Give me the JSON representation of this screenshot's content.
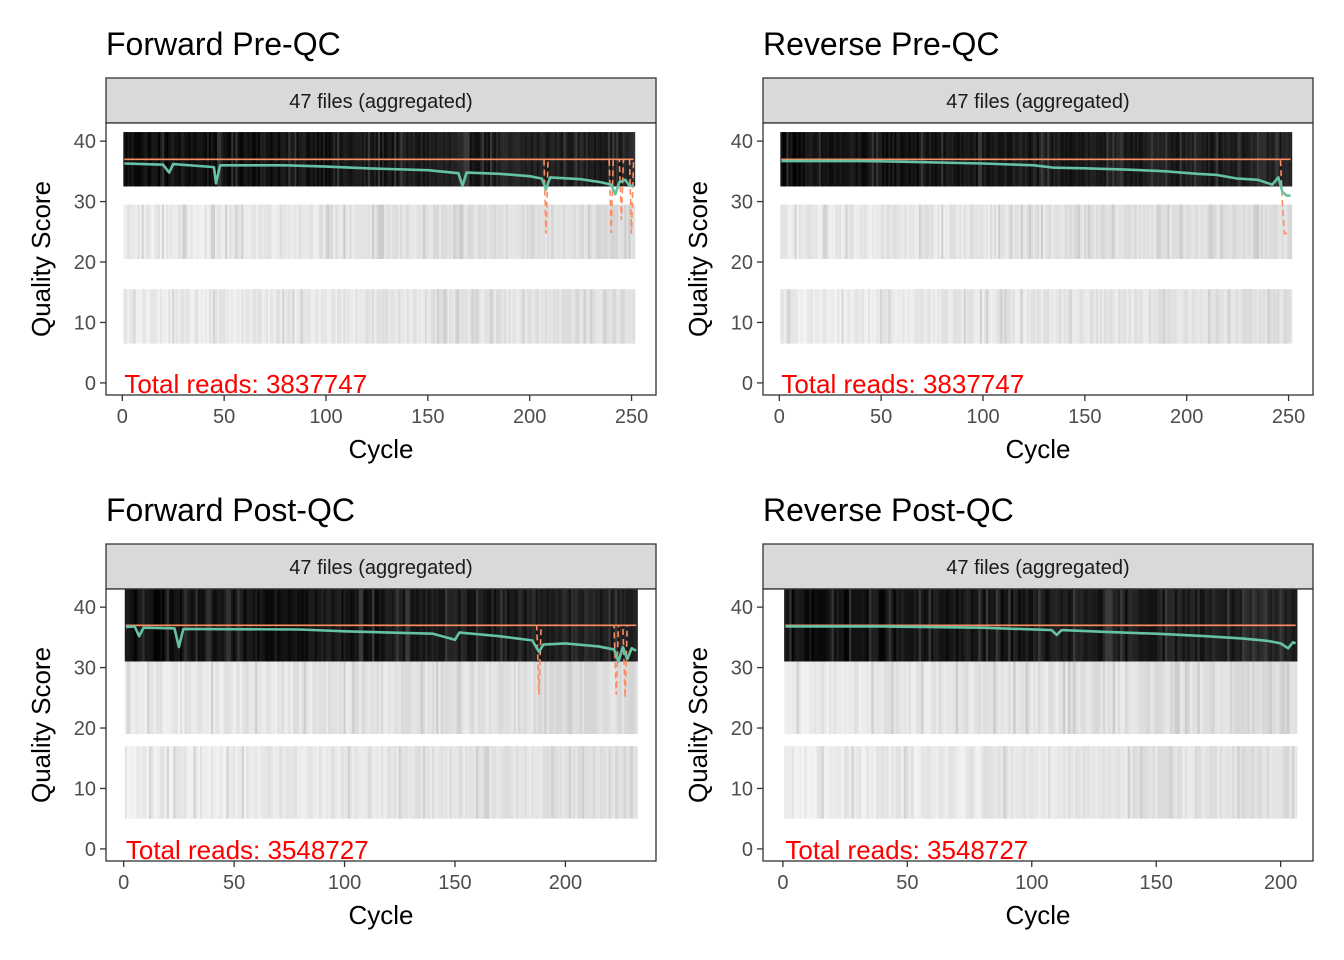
{
  "chart_data": [
    {
      "type": "heatmap",
      "title": "Forward Pre-QC",
      "strip": "47 files (aggregated)",
      "xlabel": "Cycle",
      "ylabel": "Quality Score",
      "annotation": "Total reads: 3837747",
      "xlim": [
        -8,
        262
      ],
      "ylim": [
        -2,
        43
      ],
      "xticks": [
        0,
        50,
        100,
        150,
        200,
        250
      ],
      "yticks": [
        0,
        10,
        20,
        30,
        40
      ],
      "cycles": 251,
      "bands": [
        [
          32.5,
          41.5
        ],
        [
          20.5,
          29.5
        ],
        [
          6.5,
          15.5
        ]
      ],
      "band_shades": [
        [
          "#000000",
          "#3a3a3a"
        ],
        [
          "#f4f4f4",
          "#cccccc"
        ],
        [
          "#f6f6f6",
          "#d0d0d0"
        ]
      ],
      "median_line": 37,
      "mean_quality": [
        [
          1,
          36.3
        ],
        [
          20,
          36.1
        ],
        [
          23,
          34.8
        ],
        [
          25,
          36.2
        ],
        [
          45,
          35.7
        ],
        [
          46,
          33.0
        ],
        [
          48,
          36.0
        ],
        [
          80,
          36.0
        ],
        [
          100,
          35.8
        ],
        [
          120,
          35.5
        ],
        [
          150,
          35.2
        ],
        [
          165,
          34.7
        ],
        [
          167,
          32.6
        ],
        [
          169,
          34.8
        ],
        [
          185,
          34.6
        ],
        [
          200,
          34.2
        ],
        [
          206,
          33.8
        ],
        [
          208,
          32.0
        ],
        [
          210,
          34.0
        ],
        [
          225,
          33.7
        ],
        [
          235,
          33.2
        ],
        [
          240,
          32.8
        ],
        [
          242,
          31.2
        ],
        [
          244,
          33.2
        ],
        [
          247,
          33.6
        ],
        [
          249,
          32.6
        ],
        [
          251,
          32.6
        ]
      ],
      "dashed_quantile": [
        [
          1,
          37
        ],
        [
          207,
          37
        ],
        [
          208,
          24.7
        ],
        [
          209,
          37
        ],
        [
          239,
          37
        ],
        [
          240,
          24.8
        ],
        [
          241,
          37
        ],
        [
          244,
          37
        ],
        [
          245,
          27.0
        ],
        [
          246,
          37
        ],
        [
          249,
          37
        ],
        [
          250,
          24.7
        ],
        [
          251,
          37
        ]
      ],
      "series_colors": {
        "mean": "#66c2a5",
        "quantile": "#fc8d62"
      }
    },
    {
      "type": "heatmap",
      "title": "Reverse Pre-QC",
      "strip": "47 files (aggregated)",
      "xlabel": "Cycle",
      "ylabel": "Quality Score",
      "annotation": "Total reads: 3837747",
      "xlim": [
        -8,
        262
      ],
      "ylim": [
        -2,
        43
      ],
      "xticks": [
        0,
        50,
        100,
        150,
        200,
        250
      ],
      "yticks": [
        0,
        10,
        20,
        30,
        40
      ],
      "cycles": 251,
      "bands": [
        [
          32.5,
          41.5
        ],
        [
          20.5,
          29.5
        ],
        [
          6.5,
          15.5
        ]
      ],
      "band_shades": [
        [
          "#000000",
          "#3a3a3a"
        ],
        [
          "#f4f4f4",
          "#cccccc"
        ],
        [
          "#f6f6f6",
          "#d0d0d0"
        ]
      ],
      "median_line": 37,
      "mean_quality": [
        [
          1,
          36.7
        ],
        [
          40,
          36.7
        ],
        [
          60,
          36.6
        ],
        [
          100,
          36.3
        ],
        [
          125,
          36.0
        ],
        [
          135,
          35.6
        ],
        [
          150,
          35.5
        ],
        [
          170,
          35.3
        ],
        [
          190,
          35.0
        ],
        [
          205,
          34.6
        ],
        [
          215,
          34.4
        ],
        [
          225,
          33.8
        ],
        [
          235,
          33.6
        ],
        [
          242,
          32.8
        ],
        [
          245,
          34.0
        ],
        [
          247,
          31.6
        ],
        [
          249,
          31.0
        ],
        [
          251,
          31.0
        ]
      ],
      "dashed_quantile": [
        [
          1,
          37
        ],
        [
          246,
          37
        ],
        [
          247,
          29.5
        ],
        [
          248,
          24.7
        ],
        [
          251,
          24.7
        ]
      ],
      "series_colors": {
        "mean": "#66c2a5",
        "quantile": "#fc8d62"
      }
    },
    {
      "type": "heatmap",
      "title": "Forward Post-QC",
      "strip": "47 files (aggregated)",
      "xlabel": "Cycle",
      "ylabel": "Quality Score",
      "annotation": "Total reads: 3548727",
      "xlim": [
        -8,
        241
      ],
      "ylim": [
        -2,
        43
      ],
      "xticks": [
        0,
        50,
        100,
        150,
        200
      ],
      "yticks": [
        0,
        10,
        20,
        30,
        40
      ],
      "cycles": 232,
      "bands": [
        [
          31,
          43
        ],
        [
          19,
          31
        ],
        [
          5,
          17
        ]
      ],
      "band_shades": [
        [
          "#000000",
          "#3a3a3a"
        ],
        [
          "#f4f4f4",
          "#cccccc"
        ],
        [
          "#f6f6f6",
          "#d0d0d0"
        ]
      ],
      "median_line": 37,
      "mean_quality": [
        [
          1,
          36.7
        ],
        [
          5,
          36.8
        ],
        [
          7,
          35.2
        ],
        [
          9,
          36.6
        ],
        [
          23,
          36.5
        ],
        [
          25,
          33.4
        ],
        [
          27,
          36.4
        ],
        [
          80,
          36.3
        ],
        [
          100,
          36.0
        ],
        [
          140,
          35.6
        ],
        [
          150,
          34.6
        ],
        [
          152,
          35.8
        ],
        [
          170,
          35.2
        ],
        [
          185,
          34.5
        ],
        [
          188,
          32.6
        ],
        [
          190,
          33.8
        ],
        [
          200,
          34.0
        ],
        [
          215,
          33.5
        ],
        [
          222,
          33.0
        ],
        [
          224,
          31.0
        ],
        [
          226,
          33.4
        ],
        [
          228,
          31.4
        ],
        [
          230,
          33.2
        ],
        [
          232,
          32.8
        ]
      ],
      "dashed_quantile": [
        [
          1,
          37
        ],
        [
          187,
          37
        ],
        [
          188,
          25.5
        ],
        [
          189,
          37
        ],
        [
          222,
          37
        ],
        [
          223,
          25.5
        ],
        [
          224,
          37
        ],
        [
          226,
          37
        ],
        [
          227,
          25.0
        ],
        [
          228,
          37
        ],
        [
          232,
          37
        ]
      ],
      "series_colors": {
        "mean": "#66c2a5",
        "quantile": "#fc8d62"
      }
    },
    {
      "type": "heatmap",
      "title": "Reverse Post-QC",
      "strip": "47 files (aggregated)",
      "xlabel": "Cycle",
      "ylabel": "Quality Score",
      "annotation": "Total reads: 3548727",
      "xlim": [
        -8,
        213
      ],
      "ylim": [
        -2,
        43
      ],
      "xticks": [
        0,
        50,
        100,
        150,
        200
      ],
      "yticks": [
        0,
        10,
        20,
        30,
        40
      ],
      "cycles": 206,
      "bands": [
        [
          31,
          43
        ],
        [
          19,
          31
        ],
        [
          5,
          17
        ]
      ],
      "band_shades": [
        [
          "#000000",
          "#3a3a3a"
        ],
        [
          "#f4f4f4",
          "#cccccc"
        ],
        [
          "#f6f6f6",
          "#d0d0d0"
        ]
      ],
      "median_line": 37,
      "mean_quality": [
        [
          1,
          36.8
        ],
        [
          40,
          36.8
        ],
        [
          80,
          36.6
        ],
        [
          108,
          36.2
        ],
        [
          110,
          35.4
        ],
        [
          112,
          36.2
        ],
        [
          130,
          35.9
        ],
        [
          150,
          35.6
        ],
        [
          170,
          35.2
        ],
        [
          185,
          34.8
        ],
        [
          195,
          34.4
        ],
        [
          200,
          34.0
        ],
        [
          203,
          33.2
        ],
        [
          205,
          34.2
        ],
        [
          206,
          34.0
        ]
      ],
      "dashed_quantile": [
        [
          1,
          37
        ],
        [
          206,
          37
        ]
      ],
      "series_colors": {
        "mean": "#66c2a5",
        "quantile": "#fc8d62"
      }
    }
  ]
}
